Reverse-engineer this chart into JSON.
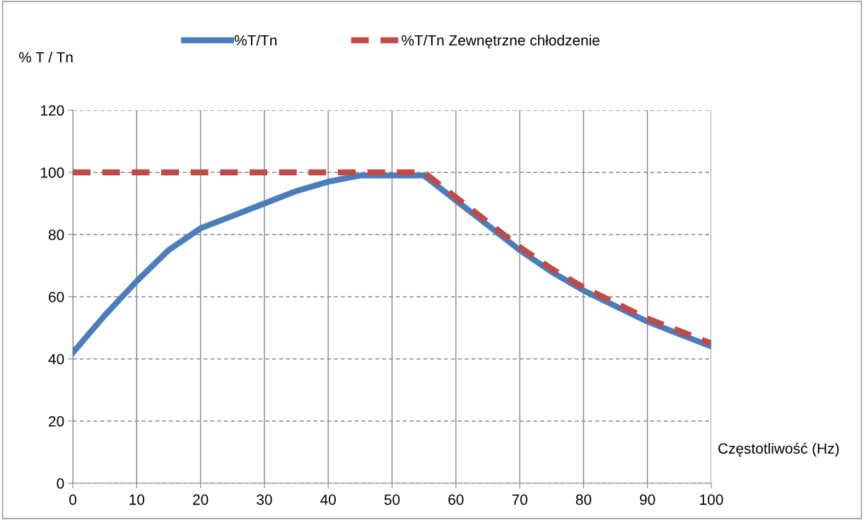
{
  "chart_data": {
    "type": "line",
    "xlabel": "Częstotliwość (Hz)",
    "ylabel": "% T / Tn",
    "x": [
      0,
      5,
      10,
      15,
      20,
      25,
      30,
      35,
      40,
      45,
      50,
      55,
      60,
      65,
      70,
      75,
      80,
      85,
      90,
      95,
      100
    ],
    "series": [
      {
        "name": "%T/Tn",
        "color": "#4a7ebb",
        "line_style": "solid",
        "values": [
          42,
          54,
          65,
          75,
          82,
          86,
          90,
          94,
          97,
          99,
          99,
          99,
          91,
          83,
          75,
          68,
          62,
          57,
          52,
          48,
          44
        ]
      },
      {
        "name": "%T/Tn Zewnętrzne chłodzenie",
        "color": "#be4b48",
        "line_style": "dashed",
        "values": [
          100,
          100,
          100,
          100,
          100,
          100,
          100,
          100,
          100,
          100,
          100,
          100,
          92,
          84,
          76,
          69,
          63,
          58,
          53,
          49,
          45
        ]
      }
    ],
    "xlim": [
      0,
      100
    ],
    "xticks": [
      0,
      10,
      20,
      30,
      40,
      50,
      60,
      70,
      80,
      90,
      100
    ],
    "ylim": [
      0,
      120
    ],
    "yticks": [
      0,
      20,
      40,
      60,
      80,
      100,
      120
    ],
    "grid": true,
    "legend": "top",
    "marker": "none"
  }
}
